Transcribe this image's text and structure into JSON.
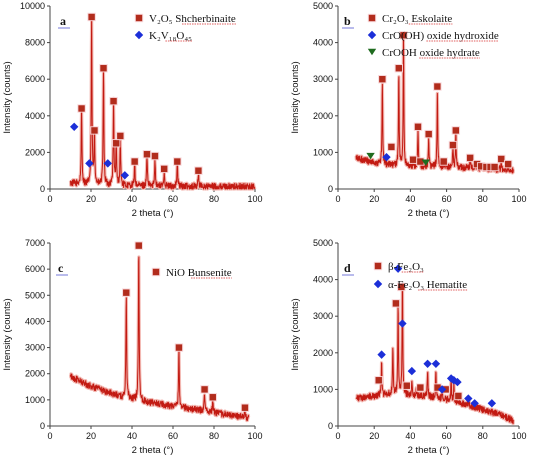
{
  "colors": {
    "line": "#c21a12",
    "glow": "#f3b9b3",
    "square": "#b22c1c",
    "diamond": "#1c2fd8",
    "triangle": "#1f6b1f",
    "highlight": "#f7d4d7",
    "underline": "#d62828",
    "axis": "#444444",
    "label": "#111111"
  },
  "chart_data": [
    {
      "type": "line",
      "panel": "a",
      "xlabel": "2 theta (°)",
      "ylabel": "Intensity (counts)",
      "xlim": [
        0,
        100
      ],
      "ylim": [
        0,
        10000
      ],
      "xticks": [
        0,
        20,
        40,
        60,
        80,
        100
      ],
      "yticks": [
        0,
        2000,
        4000,
        6000,
        8000,
        10000
      ],
      "tick_labels_x": [
        "0",
        "20",
        "40",
        "60",
        "80",
        "100"
      ],
      "tick_labels_y": [
        "0",
        "2000",
        "4000",
        "6000",
        "8000",
        "10000"
      ],
      "baseline": {
        "x": [
          10,
          15,
          20,
          30,
          50,
          70,
          100
        ],
        "y": [
          320,
          280,
          240,
          200,
          160,
          140,
          120
        ]
      },
      "peaks": [
        {
          "x": 15.4,
          "y": 4300
        },
        {
          "x": 20.3,
          "y": 9300
        },
        {
          "x": 21.7,
          "y": 3100
        },
        {
          "x": 26.1,
          "y": 6500
        },
        {
          "x": 31.0,
          "y": 4700
        },
        {
          "x": 32.3,
          "y": 2400
        },
        {
          "x": 34.3,
          "y": 2700
        },
        {
          "x": 41.3,
          "y": 1400
        },
        {
          "x": 47.3,
          "y": 1800
        },
        {
          "x": 51.2,
          "y": 1700
        },
        {
          "x": 55.7,
          "y": 1000
        },
        {
          "x": 62.1,
          "y": 1400
        },
        {
          "x": 72.4,
          "y": 900
        }
      ],
      "legend_position": "top-right",
      "series": [
        {
          "name": "V₂O₅ Shcherbinaite",
          "marker": "square",
          "points": [
            {
              "x": 15.4,
              "y": 4400
            },
            {
              "x": 20.3,
              "y": 9400
            },
            {
              "x": 21.7,
              "y": 3200
            },
            {
              "x": 26.1,
              "y": 6600
            },
            {
              "x": 31.0,
              "y": 4800
            },
            {
              "x": 32.3,
              "y": 2500
            },
            {
              "x": 34.3,
              "y": 2900
            },
            {
              "x": 41.3,
              "y": 1500
            },
            {
              "x": 47.3,
              "y": 1900
            },
            {
              "x": 51.2,
              "y": 1800
            },
            {
              "x": 55.7,
              "y": 1100
            },
            {
              "x": 62.1,
              "y": 1500
            },
            {
              "x": 72.4,
              "y": 1000
            }
          ]
        },
        {
          "name": "K₂V₁₈O₄₅",
          "marker": "diamond",
          "points": [
            {
              "x": 11.8,
              "y": 3400
            },
            {
              "x": 19.2,
              "y": 1400
            },
            {
              "x": 28.2,
              "y": 1400
            },
            {
              "x": 36.5,
              "y": 750
            }
          ]
        }
      ]
    },
    {
      "type": "line",
      "panel": "b",
      "xlabel": "2 theta (°)",
      "ylabel": "Intensity (counts)",
      "xlim": [
        0,
        100
      ],
      "ylim": [
        0,
        5000
      ],
      "xticks": [
        0,
        20,
        40,
        60,
        80,
        100
      ],
      "yticks": [
        0,
        1000,
        2000,
        3000,
        4000,
        5000
      ],
      "tick_labels_x": [
        "0",
        "20",
        "40",
        "60",
        "80",
        "100"
      ],
      "tick_labels_y": [
        "0",
        "1000",
        "2000",
        "3000",
        "4000",
        "5000"
      ],
      "baseline": {
        "x": [
          10,
          15,
          20,
          25,
          30,
          40,
          60,
          80,
          97
        ],
        "y": [
          850,
          780,
          720,
          680,
          650,
          620,
          600,
          560,
          520
        ]
      },
      "peaks": [
        {
          "x": 24.5,
          "y": 2900
        },
        {
          "x": 33.6,
          "y": 3200
        },
        {
          "x": 36.2,
          "y": 4150
        },
        {
          "x": 41.5,
          "y": 700
        },
        {
          "x": 44.2,
          "y": 1600
        },
        {
          "x": 50.1,
          "y": 1450
        },
        {
          "x": 54.9,
          "y": 2700
        },
        {
          "x": 58.4,
          "y": 700
        },
        {
          "x": 63.5,
          "y": 1150
        },
        {
          "x": 65.1,
          "y": 1550
        },
        {
          "x": 73.0,
          "y": 780
        },
        {
          "x": 76.8,
          "y": 640
        },
        {
          "x": 79.1,
          "y": 600
        },
        {
          "x": 82.0,
          "y": 580
        },
        {
          "x": 84.3,
          "y": 580
        },
        {
          "x": 86.5,
          "y": 570
        },
        {
          "x": 90.2,
          "y": 760
        },
        {
          "x": 94.0,
          "y": 620
        }
      ],
      "legend_position": "top-right",
      "series": [
        {
          "name": "Cr₂O₃ Eskolaite",
          "marker": "square",
          "points": [
            {
              "x": 24.5,
              "y": 3000
            },
            {
              "x": 33.6,
              "y": 3300
            },
            {
              "x": 36.2,
              "y": 4200
            },
            {
              "x": 41.5,
              "y": 800
            },
            {
              "x": 44.2,
              "y": 1700
            },
            {
              "x": 50.1,
              "y": 1500
            },
            {
              "x": 54.9,
              "y": 2800
            },
            {
              "x": 58.4,
              "y": 750
            },
            {
              "x": 63.5,
              "y": 1200
            },
            {
              "x": 65.1,
              "y": 1600
            },
            {
              "x": 73.0,
              "y": 850
            },
            {
              "x": 76.8,
              "y": 680
            },
            {
              "x": 79.1,
              "y": 620
            },
            {
              "x": 82.0,
              "y": 600
            },
            {
              "x": 84.3,
              "y": 600
            },
            {
              "x": 86.5,
              "y": 600
            },
            {
              "x": 90.2,
              "y": 820
            },
            {
              "x": 94.0,
              "y": 680
            },
            {
              "x": 29.5,
              "y": 1150
            },
            {
              "x": 45.5,
              "y": 750
            }
          ]
        },
        {
          "name": "CrO(OH) oxide hydroxide",
          "marker": "diamond",
          "points": [
            {
              "x": 26.8,
              "y": 870
            }
          ]
        },
        {
          "name": "CrOOH oxide hydrate",
          "marker": "triangle",
          "points": [
            {
              "x": 18.0,
              "y": 900
            },
            {
              "x": 48.5,
              "y": 720
            }
          ]
        }
      ]
    },
    {
      "type": "line",
      "panel": "c",
      "xlabel": "2 theta (°)",
      "ylabel": "Intensity (counts)",
      "xlim": [
        0,
        100
      ],
      "ylim": [
        0,
        7000
      ],
      "xticks": [
        0,
        20,
        40,
        60,
        80,
        100
      ],
      "yticks": [
        0,
        1000,
        2000,
        3000,
        4000,
        5000,
        6000,
        7000
      ],
      "tick_labels_x": [
        "0",
        "20",
        "40",
        "60",
        "80",
        "100"
      ],
      "tick_labels_y": [
        "0",
        "1000",
        "2000",
        "3000",
        "4000",
        "5000",
        "6000",
        "7000"
      ],
      "baseline": {
        "x": [
          10,
          15,
          20,
          25,
          30,
          35,
          45,
          55,
          65,
          75,
          85,
          97
        ],
        "y": [
          1900,
          1700,
          1520,
          1380,
          1250,
          1100,
          950,
          820,
          700,
          580,
          450,
          300
        ]
      },
      "peaks": [
        {
          "x": 37.2,
          "y": 5000
        },
        {
          "x": 43.3,
          "y": 6800
        },
        {
          "x": 62.9,
          "y": 2900
        },
        {
          "x": 75.4,
          "y": 1300
        },
        {
          "x": 79.4,
          "y": 1000
        },
        {
          "x": 95.1,
          "y": 600
        }
      ],
      "legend_position": "top-right",
      "series": [
        {
          "name": "NiO Bunsenite",
          "marker": "square",
          "points": [
            {
              "x": 37.2,
              "y": 5100
            },
            {
              "x": 43.3,
              "y": 6900
            },
            {
              "x": 62.9,
              "y": 3000
            },
            {
              "x": 75.4,
              "y": 1400
            },
            {
              "x": 79.4,
              "y": 1100
            },
            {
              "x": 95.1,
              "y": 700
            }
          ]
        }
      ]
    },
    {
      "type": "line",
      "panel": "d",
      "xlabel": "2 theta (°)",
      "ylabel": "Intensity (counts)",
      "xlim": [
        0,
        100
      ],
      "ylim": [
        0,
        5000
      ],
      "xticks": [
        0,
        20,
        40,
        60,
        80,
        100
      ],
      "yticks": [
        0,
        1000,
        2000,
        3000,
        4000,
        5000
      ],
      "tick_labels_x": [
        "0",
        "20",
        "40",
        "60",
        "80",
        "100"
      ],
      "tick_labels_y": [
        "0",
        "1000",
        "2000",
        "3000",
        "4000",
        "5000"
      ],
      "baseline": {
        "x": [
          10,
          20,
          30,
          40,
          50,
          60,
          70,
          80,
          90,
          97
        ],
        "y": [
          750,
          820,
          880,
          850,
          800,
          720,
          600,
          450,
          300,
          150
        ]
      },
      "peaks": [
        {
          "x": 24.1,
          "y": 1800
        },
        {
          "x": 30.3,
          "y": 2200
        },
        {
          "x": 33.2,
          "y": 3300
        },
        {
          "x": 35.6,
          "y": 4000
        },
        {
          "x": 40.8,
          "y": 1200
        },
        {
          "x": 43.3,
          "y": 1050
        },
        {
          "x": 49.5,
          "y": 1500
        },
        {
          "x": 54.1,
          "y": 1500
        },
        {
          "x": 57.5,
          "y": 950
        },
        {
          "x": 62.5,
          "y": 1250
        },
        {
          "x": 64.0,
          "y": 1100
        },
        {
          "x": 71.9,
          "y": 700
        }
      ],
      "legend_position": "top-right",
      "series": [
        {
          "name": "β-Fe₂O₃",
          "marker": "square",
          "points": [
            {
              "x": 22.5,
              "y": 1250
            },
            {
              "x": 32.0,
              "y": 3350
            },
            {
              "x": 35.0,
              "y": 3800
            },
            {
              "x": 38.0,
              "y": 1100
            },
            {
              "x": 45.5,
              "y": 1050
            },
            {
              "x": 55.0,
              "y": 1050
            },
            {
              "x": 59.5,
              "y": 1000
            },
            {
              "x": 66.5,
              "y": 820
            }
          ]
        },
        {
          "name": "α-Fe₂O₃ Hematite",
          "marker": "diamond",
          "points": [
            {
              "x": 24.1,
              "y": 1950
            },
            {
              "x": 33.2,
              "y": 4300
            },
            {
              "x": 35.6,
              "y": 2800
            },
            {
              "x": 40.8,
              "y": 1500
            },
            {
              "x": 49.5,
              "y": 1700
            },
            {
              "x": 54.1,
              "y": 1700
            },
            {
              "x": 57.5,
              "y": 1000
            },
            {
              "x": 62.5,
              "y": 1300
            },
            {
              "x": 64.0,
              "y": 1250
            },
            {
              "x": 66.0,
              "y": 1200
            },
            {
              "x": 72.0,
              "y": 750
            },
            {
              "x": 75.5,
              "y": 620
            },
            {
              "x": 85.0,
              "y": 620
            }
          ]
        }
      ]
    }
  ]
}
